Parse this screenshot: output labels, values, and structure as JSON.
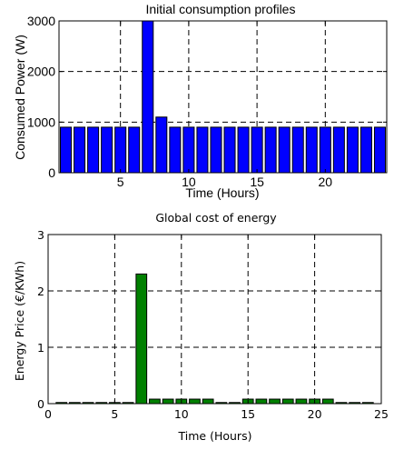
{
  "chart_data": [
    {
      "type": "bar",
      "title": "Initial consumption profiles",
      "xlabel": "Time (Hours)",
      "ylabel": "Consumed Power (W)",
      "x": [
        1,
        2,
        3,
        4,
        5,
        6,
        7,
        8,
        9,
        10,
        11,
        12,
        13,
        14,
        15,
        16,
        17,
        18,
        19,
        20,
        21,
        22,
        23,
        24
      ],
      "values": [
        900,
        900,
        900,
        900,
        900,
        900,
        3000,
        1100,
        900,
        900,
        900,
        900,
        900,
        900,
        900,
        900,
        900,
        900,
        900,
        900,
        900,
        900,
        900,
        900
      ],
      "xlim": [
        0.5,
        24.5
      ],
      "ylim": [
        0,
        3000
      ],
      "xticks": [
        5,
        10,
        15,
        20
      ],
      "yticks": [
        0,
        1000,
        2000,
        3000
      ],
      "grid": true,
      "color": "#0000ff"
    },
    {
      "type": "bar",
      "title": "Global cost of energy",
      "xlabel": "Time (Hours)",
      "ylabel": "Energy Price  (€/KWh)",
      "x": [
        1,
        2,
        3,
        4,
        5,
        6,
        7,
        8,
        9,
        10,
        11,
        12,
        13,
        14,
        15,
        16,
        17,
        18,
        19,
        20,
        21,
        22,
        23,
        24
      ],
      "values": [
        0.02,
        0.02,
        0.02,
        0.02,
        0.02,
        0.02,
        2.3,
        0.08,
        0.08,
        0.08,
        0.08,
        0.08,
        0.02,
        0.02,
        0.08,
        0.08,
        0.08,
        0.08,
        0.08,
        0.08,
        0.08,
        0.02,
        0.02,
        0.02
      ],
      "xlim": [
        0,
        25
      ],
      "ylim": [
        0,
        3
      ],
      "xticks": [
        0,
        5,
        10,
        15,
        20,
        25
      ],
      "yticks": [
        0,
        1,
        2,
        3
      ],
      "grid": true,
      "color": "#008000"
    }
  ]
}
